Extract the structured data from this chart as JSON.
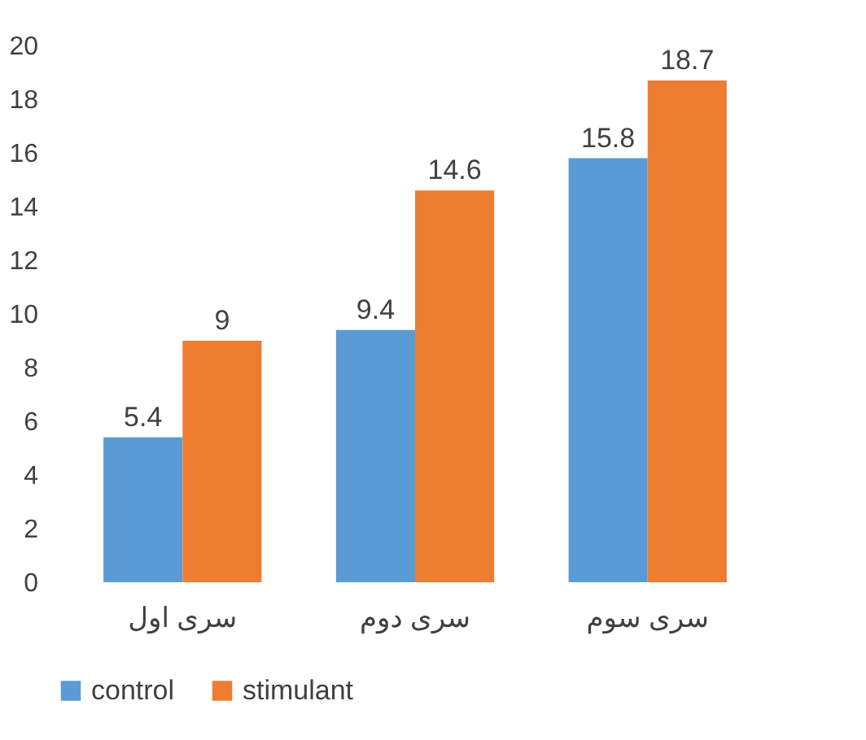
{
  "chart_data": {
    "type": "bar",
    "categories": [
      "سری اول",
      "سری دوم",
      "سری سوم"
    ],
    "series": [
      {
        "name": "control",
        "color": "#5b9bd5",
        "values": [
          5.4,
          9.4,
          15.8
        ]
      },
      {
        "name": "stimulant",
        "color": "#ed7d31",
        "values": [
          9,
          14.6,
          18.7
        ]
      }
    ],
    "ylim": [
      0,
      20
    ],
    "yticks": [
      0,
      2,
      4,
      6,
      8,
      10,
      12,
      14,
      16,
      18,
      20
    ],
    "grid": false,
    "legend": "bottom",
    "data_labels": true
  }
}
